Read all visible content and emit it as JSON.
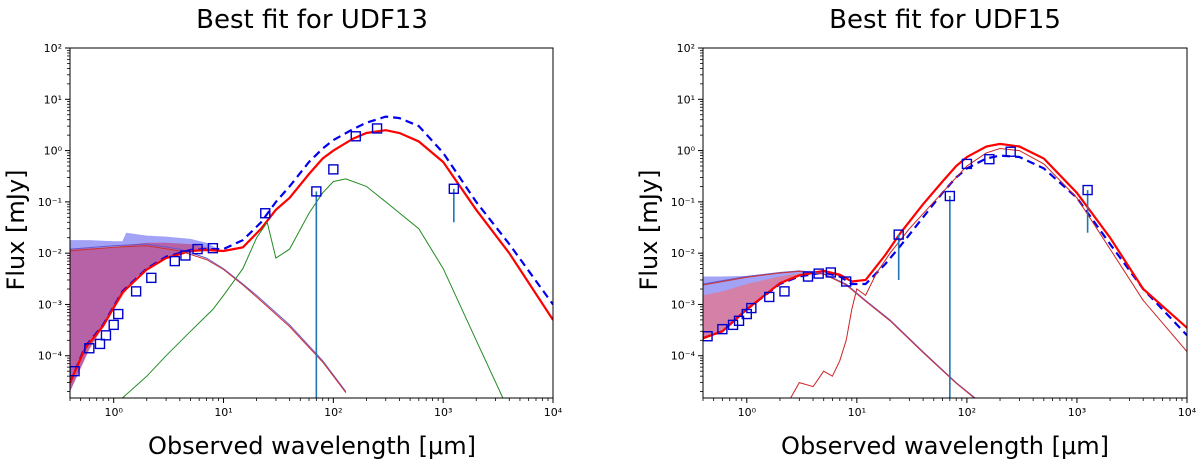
{
  "chart_data": [
    {
      "type": "line",
      "title": "Best fit for UDF13",
      "xlabel": "Observed wavelength [μm]",
      "ylabel": "Flux [mJy]",
      "xscale": "log",
      "yscale": "log",
      "xlim": [
        0.4,
        10000
      ],
      "ylim": [
        1.5e-05,
        100
      ],
      "grid": false,
      "x_ticks": [
        1,
        10,
        100,
        1000,
        10000
      ],
      "y_ticks": [
        0.0001,
        0.001,
        0.01,
        0.1,
        1,
        10,
        100
      ],
      "x_tick_labels": [
        "10⁰",
        "10¹",
        "10²",
        "10³",
        "10⁴"
      ],
      "y_tick_labels": [
        "10⁻⁴",
        "10⁻³",
        "10⁻²",
        "10⁻¹",
        "10⁰",
        "10¹",
        "10²"
      ],
      "series": [
        {
          "style": "blue-dashed",
          "color": "#0000ee",
          "x": [
            0.4,
            0.55,
            0.8,
            1.2,
            2,
            3,
            5,
            7,
            10,
            15,
            22,
            30,
            40,
            60,
            80,
            100,
            150,
            200,
            300,
            400,
            600,
            1000,
            2000,
            4000,
            10000
          ],
          "y": [
            3e-05,
            0.00015,
            0.0004,
            0.0018,
            0.005,
            0.0085,
            0.0115,
            0.012,
            0.012,
            0.018,
            0.04,
            0.1,
            0.2,
            0.6,
            1.1,
            1.6,
            2.6,
            3.5,
            4.6,
            4.3,
            3.0,
            0.9,
            0.1,
            0.015,
            0.001
          ]
        },
        {
          "style": "red-solid",
          "color": "#ff0000",
          "x": [
            0.4,
            0.55,
            0.8,
            1.2,
            2,
            3,
            5,
            7,
            10,
            15,
            22,
            30,
            40,
            60,
            80,
            100,
            150,
            200,
            300,
            400,
            600,
            1000,
            2000,
            4000,
            10000
          ],
          "y": [
            3e-05,
            0.00014,
            0.00038,
            0.0017,
            0.0048,
            0.008,
            0.011,
            0.0115,
            0.011,
            0.013,
            0.03,
            0.07,
            0.12,
            0.35,
            0.7,
            1.0,
            1.7,
            2.2,
            2.5,
            2.2,
            1.5,
            0.6,
            0.07,
            0.01,
            0.0005
          ]
        },
        {
          "style": "green-thin",
          "color": "#228b22",
          "x": [
            1.2,
            2,
            3,
            5,
            8,
            10,
            15,
            20,
            25,
            30,
            40,
            60,
            80,
            100,
            130,
            200,
            300,
            600,
            1000,
            2000,
            3500
          ],
          "y": [
            1.5e-05,
            4e-05,
            0.0001,
            0.0003,
            0.0008,
            0.0015,
            0.005,
            0.02,
            0.04,
            0.008,
            0.012,
            0.06,
            0.15,
            0.25,
            0.28,
            0.2,
            0.1,
            0.03,
            0.005,
            0.0002,
            1.5e-05
          ]
        },
        {
          "style": "stellar-blue-thin",
          "color": "#6a5acd",
          "x": [
            0.4,
            1,
            2,
            4,
            7,
            10,
            15,
            20,
            40,
            80,
            130
          ],
          "y": [
            0.012,
            0.014,
            0.015,
            0.012,
            0.008,
            0.005,
            0.0025,
            0.0015,
            0.0004,
            8e-05,
            2e-05
          ]
        },
        {
          "style": "stellar-red-thin",
          "color": "#cc3333",
          "x": [
            0.4,
            1,
            2,
            4,
            7,
            10,
            15,
            20,
            40,
            80,
            130
          ],
          "y": [
            0.011,
            0.013,
            0.014,
            0.011,
            0.0075,
            0.0048,
            0.0024,
            0.0014,
            0.00037,
            7.5e-05,
            1.9e-05
          ]
        }
      ],
      "bands": [
        {
          "color": "#5555ee",
          "opacity": 0.55,
          "x": [
            0.4,
            0.6,
            1,
            1.2,
            1.3,
            2,
            3,
            5,
            7,
            9
          ],
          "upper": [
            0.018,
            0.018,
            0.017,
            0.017,
            0.025,
            0.022,
            0.021,
            0.019,
            0.016,
            0.012
          ],
          "lower": [
            2e-05,
            0.00014,
            0.0008,
            0.0018,
            0.002,
            0.005,
            0.0085,
            0.0115,
            0.012,
            0.012
          ]
        },
        {
          "color": "#cc2255",
          "opacity": 0.5,
          "x": [
            0.4,
            0.6,
            1,
            1.5,
            2,
            3,
            5,
            7,
            9
          ],
          "upper": [
            0.012,
            0.0125,
            0.013,
            0.015,
            0.016,
            0.016,
            0.015,
            0.013,
            0.011
          ],
          "lower": [
            2e-05,
            0.00013,
            0.0008,
            0.003,
            0.005,
            0.008,
            0.011,
            0.0115,
            0.011
          ]
        }
      ],
      "points": [
        {
          "x": 0.44,
          "y": 5e-05
        },
        {
          "x": 0.6,
          "y": 0.00014
        },
        {
          "x": 0.75,
          "y": 0.00017
        },
        {
          "x": 0.85,
          "y": 0.00025
        },
        {
          "x": 1.0,
          "y": 0.0004
        },
        {
          "x": 1.1,
          "y": 0.00065
        },
        {
          "x": 1.6,
          "y": 0.0018
        },
        {
          "x": 2.2,
          "y": 0.0033
        },
        {
          "x": 3.6,
          "y": 0.007
        },
        {
          "x": 4.5,
          "y": 0.009
        },
        {
          "x": 5.8,
          "y": 0.012
        },
        {
          "x": 8,
          "y": 0.0125
        },
        {
          "x": 24,
          "y": 0.06
        },
        {
          "x": 70,
          "y": 0.16,
          "yerr_low": 1.5e-05
        },
        {
          "x": 100,
          "y": 0.43
        },
        {
          "x": 160,
          "y": 1.9
        },
        {
          "x": 250,
          "y": 2.7
        },
        {
          "x": 1250,
          "y": 0.18,
          "yerr_low": 0.04
        }
      ]
    },
    {
      "type": "line",
      "title": "Best fit for UDF15",
      "xlabel": "Observed wavelength [μm]",
      "ylabel": "Flux [mJy]",
      "xscale": "log",
      "yscale": "log",
      "xlim": [
        0.4,
        10000
      ],
      "ylim": [
        1.5e-05,
        100
      ],
      "grid": false,
      "x_ticks": [
        1,
        10,
        100,
        1000,
        10000
      ],
      "y_ticks": [
        0.0001,
        0.001,
        0.01,
        0.1,
        1,
        10,
        100
      ],
      "x_tick_labels": [
        "10⁰",
        "10¹",
        "10²",
        "10³",
        "10⁴"
      ],
      "y_tick_labels": [
        "10⁻⁴",
        "10⁻³",
        "10⁻²",
        "10⁻¹",
        "10⁰",
        "10¹",
        "10²"
      ],
      "series": [
        {
          "style": "blue-dashed",
          "color": "#0000ee",
          "x": [
            0.4,
            0.6,
            1,
            2,
            3,
            5,
            7,
            9,
            12,
            18,
            25,
            40,
            60,
            80,
            100,
            150,
            200,
            300,
            500,
            1000,
            2000,
            4000,
            10000
          ],
          "y": [
            0.00022,
            0.0003,
            0.0008,
            0.0025,
            0.0035,
            0.0042,
            0.0035,
            0.0025,
            0.0025,
            0.006,
            0.014,
            0.05,
            0.15,
            0.3,
            0.45,
            0.7,
            0.8,
            0.75,
            0.45,
            0.12,
            0.015,
            0.002,
            0.00025
          ]
        },
        {
          "style": "red-solid",
          "color": "#ff0000",
          "x": [
            0.4,
            0.6,
            1,
            2,
            3,
            5,
            7,
            9,
            12,
            18,
            25,
            40,
            60,
            80,
            100,
            150,
            200,
            300,
            500,
            1000,
            2000,
            4000,
            10000
          ],
          "y": [
            0.00022,
            0.0003,
            0.0008,
            0.0026,
            0.0037,
            0.0045,
            0.0038,
            0.0028,
            0.003,
            0.009,
            0.025,
            0.09,
            0.25,
            0.5,
            0.75,
            1.2,
            1.35,
            1.2,
            0.7,
            0.15,
            0.02,
            0.002,
            0.00035
          ]
        },
        {
          "style": "red-thin",
          "color": "#cc2222",
          "x": [
            2.5,
            3,
            4,
            5,
            6,
            7,
            8,
            9,
            10,
            12,
            15,
            20,
            30,
            50,
            80,
            100,
            150,
            200,
            300,
            500,
            1000,
            2000,
            4000,
            10000
          ],
          "y": [
            1.5e-05,
            3e-05,
            2.5e-05,
            5e-05,
            4e-05,
            8e-05,
            0.0002,
            0.0008,
            0.002,
            0.0015,
            0.004,
            0.01,
            0.03,
            0.1,
            0.3,
            0.5,
            0.9,
            1.1,
            1.0,
            0.55,
            0.12,
            0.012,
            0.0012,
            0.00012
          ]
        },
        {
          "style": "stellar-blue-thin",
          "color": "#6a5acd",
          "x": [
            0.4,
            1,
            2,
            3,
            5,
            8,
            12,
            20,
            40,
            80,
            150
          ],
          "y": [
            0.0025,
            0.0035,
            0.0042,
            0.0045,
            0.004,
            0.0025,
            0.0012,
            0.0005,
            0.00012,
            3e-05,
            1e-05
          ]
        },
        {
          "style": "stellar-red-thin",
          "color": "#cc3333",
          "x": [
            0.4,
            1,
            2,
            3,
            5,
            8,
            12,
            20,
            40,
            80,
            150
          ],
          "y": [
            0.0024,
            0.0034,
            0.0041,
            0.0044,
            0.0039,
            0.0024,
            0.00115,
            0.00048,
            0.000115,
            2.9e-05,
            9.6e-06
          ]
        }
      ],
      "bands": [
        {
          "color": "#5555ee",
          "opacity": 0.55,
          "x": [
            0.4,
            0.6,
            1,
            2,
            3,
            5,
            7
          ],
          "upper": [
            0.0035,
            0.0035,
            0.0036,
            0.0042,
            0.0045,
            0.0045,
            0.004
          ],
          "lower": [
            0.00022,
            0.0003,
            0.0008,
            0.0025,
            0.0035,
            0.0042,
            0.0035
          ]
        },
        {
          "color": "#ff6666",
          "opacity": 0.55,
          "x": [
            0.4,
            0.6,
            1,
            2,
            3,
            5,
            7
          ],
          "upper": [
            0.0015,
            0.0018,
            0.0025,
            0.0035,
            0.004,
            0.0043,
            0.0038
          ],
          "lower": [
            0.00022,
            0.0003,
            0.0008,
            0.0025,
            0.0035,
            0.0042,
            0.0035
          ]
        }
      ],
      "points": [
        {
          "x": 0.44,
          "y": 0.00024
        },
        {
          "x": 0.6,
          "y": 0.00033
        },
        {
          "x": 0.75,
          "y": 0.0004
        },
        {
          "x": 0.85,
          "y": 0.00048
        },
        {
          "x": 1.0,
          "y": 0.00065
        },
        {
          "x": 1.1,
          "y": 0.00085
        },
        {
          "x": 1.6,
          "y": 0.0014
        },
        {
          "x": 2.2,
          "y": 0.0018
        },
        {
          "x": 3.6,
          "y": 0.0035
        },
        {
          "x": 4.5,
          "y": 0.004
        },
        {
          "x": 5.8,
          "y": 0.0042
        },
        {
          "x": 8,
          "y": 0.0028
        },
        {
          "x": 24,
          "y": 0.023,
          "yerr_low": 0.003
        },
        {
          "x": 70,
          "y": 0.13,
          "yerr_low": 1.5e-05
        },
        {
          "x": 100,
          "y": 0.55
        },
        {
          "x": 160,
          "y": 0.68
        },
        {
          "x": 250,
          "y": 0.95
        },
        {
          "x": 1250,
          "y": 0.17,
          "yerr_low": 0.025
        }
      ]
    }
  ]
}
